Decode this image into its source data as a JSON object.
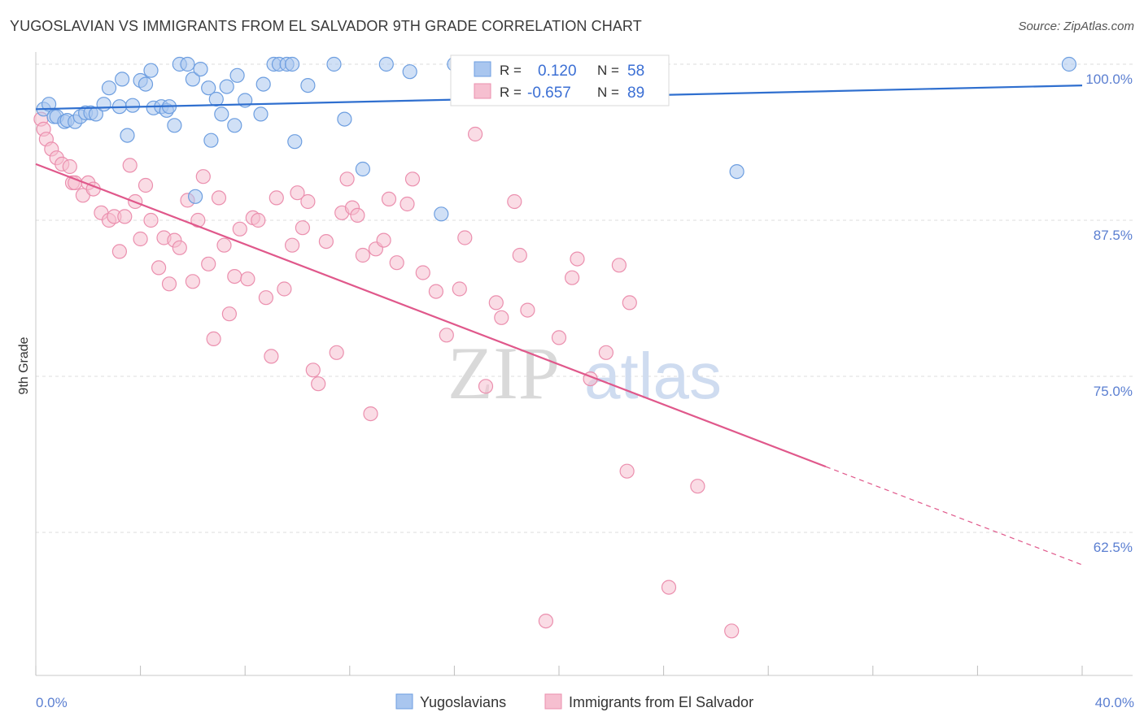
{
  "header": {
    "title": "YUGOSLAVIAN VS IMMIGRANTS FROM EL SALVADOR 9TH GRADE CORRELATION CHART",
    "source": "Source: ZipAtlas.com"
  },
  "watermark": {
    "zip": "ZIP",
    "atlas": "atlas"
  },
  "legend_box": {
    "rows": [
      {
        "r_label": "R =",
        "r_value": "0.120",
        "n_label": "N =",
        "n_value": "58"
      },
      {
        "r_label": "R =",
        "r_value": "-0.657",
        "n_label": "N =",
        "n_value": "89"
      }
    ]
  },
  "bottom_legend": {
    "items": [
      {
        "label": "Yugoslavians"
      },
      {
        "label": "Immigrants from El Salvador"
      }
    ]
  },
  "colors": {
    "blue_fill": "#a9c6ef",
    "blue_stroke": "#6d9ee0",
    "blue_line": "#2f6fcf",
    "pink_fill": "#f6bfd0",
    "pink_stroke": "#eb8fae",
    "pink_line": "#e0588b",
    "axis_text": "#5b7fd1",
    "grid": "#dcdcdc"
  },
  "chart_data": {
    "type": "scatter",
    "title": "YUGOSLAVIAN VS IMMIGRANTS FROM EL SALVADOR 9TH GRADE CORRELATION CHART",
    "xlabel": "",
    "ylabel": "9th Grade",
    "xlim": [
      0,
      40
    ],
    "ylim": [
      51.5,
      103
    ],
    "x_ticks": [
      "0.0%",
      "40.0%"
    ],
    "y_ticks": [
      {
        "value": 100,
        "label": "100.0%"
      },
      {
        "value": 87.5,
        "label": "87.5%"
      },
      {
        "value": 75,
        "label": "75.0%"
      },
      {
        "value": 62.5,
        "label": "62.5%"
      }
    ],
    "grid": true,
    "legend_position": "top-center",
    "series": [
      {
        "name": "Yugoslavians",
        "R": 0.12,
        "N": 58,
        "trend": {
          "x": [
            0,
            40
          ],
          "y": [
            96.4,
            98.3
          ],
          "dashed_from": null
        },
        "points": [
          [
            0.3,
            96.4
          ],
          [
            0.5,
            96.8
          ],
          [
            0.7,
            95.8
          ],
          [
            0.8,
            95.8
          ],
          [
            1.1,
            95.4
          ],
          [
            1.2,
            95.5
          ],
          [
            1.5,
            95.4
          ],
          [
            1.7,
            95.8
          ],
          [
            1.9,
            96.1
          ],
          [
            2.1,
            96.1
          ],
          [
            2.3,
            96.0
          ],
          [
            2.6,
            96.8
          ],
          [
            2.8,
            98.1
          ],
          [
            3.2,
            96.6
          ],
          [
            3.3,
            98.8
          ],
          [
            3.5,
            94.3
          ],
          [
            3.7,
            96.7
          ],
          [
            4.0,
            98.7
          ],
          [
            4.2,
            98.4
          ],
          [
            4.4,
            99.5
          ],
          [
            4.5,
            96.5
          ],
          [
            4.8,
            96.6
          ],
          [
            5.0,
            96.3
          ],
          [
            5.1,
            96.6
          ],
          [
            5.3,
            95.1
          ],
          [
            5.5,
            100.0
          ],
          [
            5.8,
            100.0
          ],
          [
            6.0,
            98.8
          ],
          [
            6.1,
            89.4
          ],
          [
            6.3,
            99.6
          ],
          [
            6.6,
            98.1
          ],
          [
            6.7,
            93.9
          ],
          [
            6.9,
            97.2
          ],
          [
            7.1,
            96.0
          ],
          [
            7.3,
            98.2
          ],
          [
            7.6,
            95.1
          ],
          [
            7.7,
            99.1
          ],
          [
            8.0,
            97.1
          ],
          [
            8.6,
            96.0
          ],
          [
            8.7,
            98.4
          ],
          [
            9.1,
            100.0
          ],
          [
            9.3,
            100.0
          ],
          [
            9.6,
            100.0
          ],
          [
            9.8,
            100.0
          ],
          [
            9.9,
            93.8
          ],
          [
            10.4,
            98.3
          ],
          [
            11.4,
            100.0
          ],
          [
            11.8,
            95.6
          ],
          [
            12.5,
            91.6
          ],
          [
            13.4,
            100.0
          ],
          [
            14.3,
            99.4
          ],
          [
            15.5,
            88.0
          ],
          [
            16.0,
            100.0
          ],
          [
            19.7,
            100.0
          ],
          [
            20.8,
            98.3
          ],
          [
            21.0,
            98.1
          ],
          [
            26.8,
            91.4
          ],
          [
            39.5,
            100.0
          ]
        ]
      },
      {
        "name": "Immigrants from El Salvador",
        "R": -0.657,
        "N": 89,
        "trend": {
          "x": [
            0,
            40
          ],
          "y": [
            92.0,
            59.9
          ],
          "dashed_from": 30.2
        },
        "points": [
          [
            0.2,
            95.6
          ],
          [
            0.3,
            94.8
          ],
          [
            0.4,
            94.0
          ],
          [
            0.6,
            93.2
          ],
          [
            0.8,
            92.5
          ],
          [
            1.0,
            92.0
          ],
          [
            1.3,
            91.8
          ],
          [
            1.4,
            90.5
          ],
          [
            1.5,
            90.5
          ],
          [
            1.8,
            89.5
          ],
          [
            2.0,
            90.5
          ],
          [
            2.2,
            90.0
          ],
          [
            2.5,
            88.1
          ],
          [
            2.8,
            87.5
          ],
          [
            3.0,
            87.8
          ],
          [
            3.2,
            85.0
          ],
          [
            3.4,
            87.8
          ],
          [
            3.6,
            91.9
          ],
          [
            3.8,
            89.0
          ],
          [
            4.0,
            86.0
          ],
          [
            4.2,
            90.3
          ],
          [
            4.4,
            87.5
          ],
          [
            4.7,
            83.7
          ],
          [
            4.9,
            86.1
          ],
          [
            5.1,
            82.4
          ],
          [
            5.3,
            85.9
          ],
          [
            5.5,
            85.3
          ],
          [
            5.8,
            89.1
          ],
          [
            6.0,
            82.6
          ],
          [
            6.2,
            87.5
          ],
          [
            6.4,
            91.0
          ],
          [
            6.6,
            84.0
          ],
          [
            6.8,
            78.0
          ],
          [
            7.0,
            89.3
          ],
          [
            7.2,
            85.5
          ],
          [
            7.4,
            80.0
          ],
          [
            7.6,
            83.0
          ],
          [
            7.8,
            86.8
          ],
          [
            8.1,
            82.8
          ],
          [
            8.3,
            87.7
          ],
          [
            8.5,
            87.5
          ],
          [
            8.8,
            81.3
          ],
          [
            9.0,
            76.6
          ],
          [
            9.2,
            89.3
          ],
          [
            9.5,
            82.0
          ],
          [
            9.8,
            85.5
          ],
          [
            10.0,
            89.7
          ],
          [
            10.2,
            86.9
          ],
          [
            10.4,
            89.0
          ],
          [
            10.6,
            75.5
          ],
          [
            10.8,
            74.4
          ],
          [
            11.1,
            85.8
          ],
          [
            11.5,
            76.9
          ],
          [
            11.7,
            88.1
          ],
          [
            11.9,
            90.8
          ],
          [
            12.1,
            88.5
          ],
          [
            12.3,
            87.9
          ],
          [
            12.5,
            84.7
          ],
          [
            12.8,
            72.0
          ],
          [
            13.0,
            85.2
          ],
          [
            13.3,
            85.9
          ],
          [
            13.5,
            89.2
          ],
          [
            13.8,
            84.1
          ],
          [
            14.2,
            88.8
          ],
          [
            14.4,
            90.8
          ],
          [
            14.8,
            83.3
          ],
          [
            15.3,
            81.8
          ],
          [
            15.7,
            78.3
          ],
          [
            16.2,
            82.0
          ],
          [
            16.4,
            86.1
          ],
          [
            16.8,
            94.4
          ],
          [
            17.2,
            74.2
          ],
          [
            17.6,
            80.9
          ],
          [
            17.8,
            79.7
          ],
          [
            18.3,
            89.0
          ],
          [
            18.5,
            84.7
          ],
          [
            18.8,
            80.3
          ],
          [
            19.5,
            55.4
          ],
          [
            20.0,
            78.1
          ],
          [
            20.5,
            82.9
          ],
          [
            20.7,
            84.4
          ],
          [
            21.2,
            74.8
          ],
          [
            21.8,
            76.9
          ],
          [
            22.3,
            83.9
          ],
          [
            22.6,
            67.4
          ],
          [
            22.7,
            80.9
          ],
          [
            24.2,
            58.1
          ],
          [
            25.3,
            66.2
          ],
          [
            26.6,
            54.6
          ]
        ]
      }
    ]
  }
}
